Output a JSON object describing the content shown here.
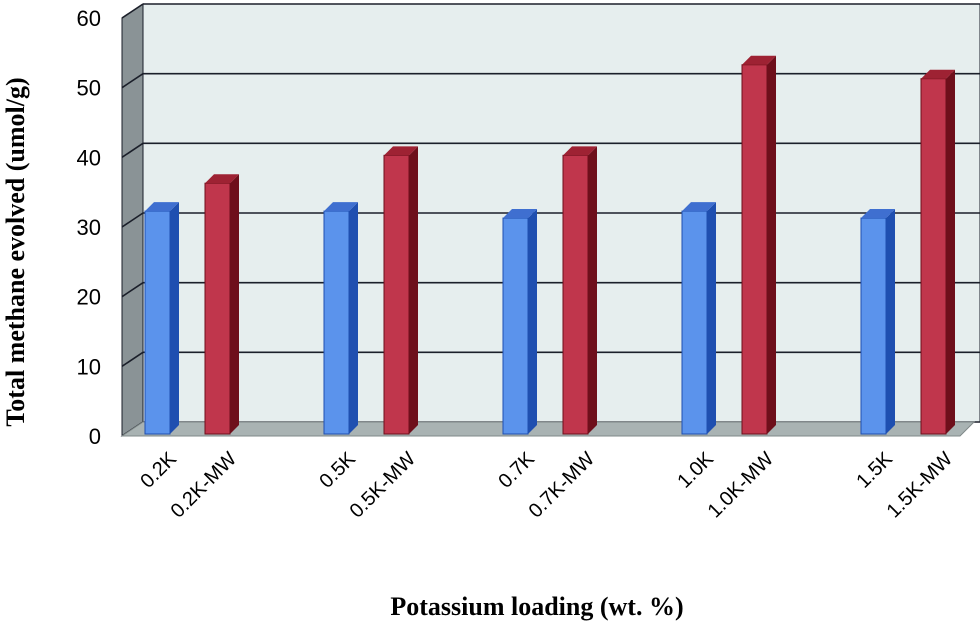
{
  "chart_data": {
    "type": "bar",
    "title": "",
    "xlabel": "Potassium loading (wt. %)",
    "ylabel": "Total methane evolved (umol/g)",
    "ylim": [
      0,
      60
    ],
    "yticks": [
      0,
      10,
      20,
      30,
      40,
      50,
      60
    ],
    "grid": true,
    "legend": "none",
    "style": "3d-columns",
    "groups": [
      {
        "bars": [
          {
            "label": "0.2K",
            "value": 32,
            "kind": "plain"
          },
          {
            "label": "0.2K-MW",
            "value": 36,
            "kind": "mw"
          }
        ]
      },
      {
        "bars": [
          {
            "label": "0.5K",
            "value": 32,
            "kind": "plain"
          },
          {
            "label": "0.5K-MW",
            "value": 40,
            "kind": "mw"
          }
        ]
      },
      {
        "bars": [
          {
            "label": "0.7K",
            "value": 31,
            "kind": "plain"
          },
          {
            "label": "0.7K-MW",
            "value": 40,
            "kind": "mw"
          }
        ]
      },
      {
        "bars": [
          {
            "label": "1.0K",
            "value": 32,
            "kind": "plain"
          },
          {
            "label": "1.0K-MW",
            "value": 53,
            "kind": "mw"
          }
        ]
      },
      {
        "bars": [
          {
            "label": "1.5K",
            "value": 31,
            "kind": "plain"
          },
          {
            "label": "1.5K-MW",
            "value": 51,
            "kind": "mw"
          }
        ]
      }
    ],
    "colors": {
      "plain": {
        "front": "#5b93ec",
        "top": "#3f6fd0",
        "side": "#1f4fb0"
      },
      "mw": {
        "front": "#c0364c",
        "top": "#9e2233",
        "side": "#6e0f1b"
      },
      "plot_back": "#e6eeee",
      "left_wall": "#8a9396",
      "floor": "#a9b3b3",
      "grid": "#1b1f2a"
    }
  }
}
